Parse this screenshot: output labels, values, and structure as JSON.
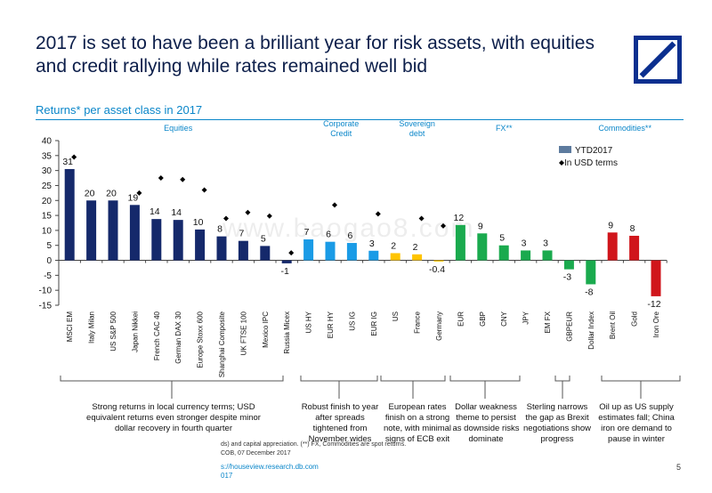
{
  "title": "2017 is set to have been a brilliant year for risk assets, with equities and credit rallying while rates remained well bid",
  "subtitle": "Returns* per asset class in 2017",
  "colors": {
    "equities": "#15296b",
    "credit": "#1a9be6",
    "sovereign": "#ffc400",
    "fx": "#1aaa4e",
    "commodities": "#d0151b",
    "gbpeur": "#1aaa4e",
    "russia": "#15296b"
  },
  "chart_data": {
    "type": "bar",
    "title": "Returns* per asset class in 2017",
    "ylim": [
      -15,
      40
    ],
    "yticks": [
      -15,
      -10,
      -5,
      0,
      5,
      10,
      15,
      20,
      25,
      30,
      35,
      40
    ],
    "group_labels": [
      "Equities",
      "Corporate\nCredit",
      "Sovereign\ndebt",
      "FX**",
      "Commodities**"
    ],
    "legend": [
      "YTD2017",
      "In USD terms"
    ],
    "categories": [
      "MSCI EM",
      "Italy Milan",
      "US S&P 500",
      "Japan Nikkei",
      "French CAC 40",
      "German DAX 30",
      "Europe Stoxx 600",
      "Shanghai Composite",
      "UK FTSE 100",
      "Mexico IPC",
      "Russia Micex",
      "US HY",
      "EUR HY",
      "US IG",
      "EUR IG",
      "US",
      "France",
      "Germany",
      "EUR",
      "GBP",
      "CNY",
      "JPY",
      "EM FX",
      "GBPEUR",
      "Dollar Index",
      "Brent Oil",
      "Gold",
      "Iron Ore"
    ],
    "groups": [
      "equities",
      "equities",
      "equities",
      "equities",
      "equities",
      "equities",
      "equities",
      "equities",
      "equities",
      "equities",
      "equities",
      "credit",
      "credit",
      "credit",
      "credit",
      "sovereign",
      "sovereign",
      "sovereign",
      "fx",
      "fx",
      "fx",
      "fx",
      "fx",
      "fx",
      "fx",
      "commodities",
      "commodities",
      "commodities"
    ],
    "series": [
      {
        "name": "YTD2017",
        "values": [
          30.5,
          20,
          20,
          18.5,
          13.8,
          13.5,
          10.3,
          8,
          6.5,
          4.8,
          -1,
          7,
          6.2,
          5.8,
          3.2,
          2.4,
          2,
          -0.4,
          11.8,
          9,
          5,
          3.3,
          3.3,
          -3,
          -8,
          9.3,
          8.2,
          -12
        ]
      },
      {
        "name": "In USD terms",
        "values": [
          34.5,
          null,
          null,
          22.5,
          27.5,
          27,
          23.5,
          14,
          16,
          14.8,
          2.5,
          null,
          18.5,
          null,
          15.5,
          null,
          14,
          11.5,
          null,
          null,
          null,
          null,
          null,
          null,
          null,
          null,
          null,
          null
        ]
      }
    ],
    "data_labels": [
      "31",
      "20",
      "20",
      "19",
      "14",
      "14",
      "10",
      "8",
      "7",
      "5",
      "-1",
      "7",
      "6",
      "6",
      "3",
      "2",
      "2",
      "-0.4",
      "12",
      "9",
      "5",
      "3",
      "3",
      "-3",
      "-8",
      "9",
      "8",
      "-12"
    ]
  },
  "annotations": [
    "Strong returns in local currency terms; USD equivalent returns even stronger despite minor dollar recovery in fourth quarter",
    "Robust finish to year after spreads tightened from November wides",
    "European rates finish on a strong note, with minimal signs of ECB exit",
    "Dollar weakness theme to persist as downside risks dominate",
    "Sterling narrows the gap as Brexit negotiations show progress",
    "Oil up as US supply estimates fall; China iron ore demand to pause in winter"
  ],
  "footnote1": "ds) and capital appreciation. (**) FX, Commodities are spot returns.",
  "footnote2": "COB, 07 December 2017",
  "link": "s://houseview.research.db.com",
  "link2": "017",
  "page_number": "5",
  "watermark": "www.baogao8.com"
}
